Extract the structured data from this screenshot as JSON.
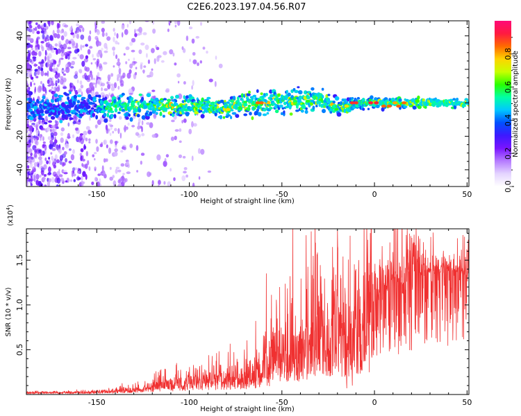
{
  "title": "C2E6.2023.197.04.56.R07",
  "chart_data": [
    {
      "type": "heatmap",
      "name": "spectrogram",
      "xlabel": "Height of straight line (km)",
      "ylabel": "Frequency (Hz)",
      "xlim": [
        -188,
        51
      ],
      "ylim": [
        -50,
        49
      ],
      "xticks": [
        -150,
        -100,
        -50,
        0,
        50
      ],
      "yticks": [
        -40,
        -20,
        0,
        20,
        40
      ],
      "colorbar": {
        "label": "Normalized spectral amplitude",
        "range": [
          0.0,
          1.0
        ],
        "ticks": [
          0.0,
          0.2,
          0.4,
          0.6,
          0.8
        ],
        "tick_labels": [
          "0.0",
          "0.2",
          "0.4",
          "0.6",
          "0.8"
        ],
        "colormap": [
          "#ffffff",
          "#e4d4ff",
          "#b57bff",
          "#7a15ff",
          "#3d19ff",
          "#0050ff",
          "#00c8ff",
          "#00ffa6",
          "#2aff00",
          "#c8ff00",
          "#ffd400",
          "#ff6a00",
          "#ff1a40",
          "#ff0a78"
        ]
      },
      "band_center": [
        [
          -188,
          -3
        ],
        [
          -170,
          -3
        ],
        [
          -150,
          -2
        ],
        [
          -120,
          -2
        ],
        [
          -100,
          -2
        ],
        [
          -80,
          -3
        ],
        [
          -70,
          -1
        ],
        [
          -60,
          0
        ],
        [
          -50,
          1
        ],
        [
          -40,
          1
        ],
        [
          -30,
          2
        ],
        [
          -20,
          -3
        ],
        [
          -10,
          -1
        ],
        [
          0,
          0
        ],
        [
          10,
          0
        ],
        [
          20,
          0
        ],
        [
          30,
          0
        ],
        [
          40,
          0
        ],
        [
          51,
          0
        ]
      ],
      "band_halfwidth": [
        [
          -188,
          7
        ],
        [
          -150,
          6
        ],
        [
          -120,
          5
        ],
        [
          -90,
          5
        ],
        [
          -75,
          6
        ],
        [
          -60,
          6
        ],
        [
          -45,
          6
        ],
        [
          -30,
          6
        ],
        [
          -20,
          4
        ],
        [
          -10,
          3
        ],
        [
          0,
          2.5
        ],
        [
          20,
          2.5
        ],
        [
          51,
          2.5
        ]
      ],
      "hot_spots": [
        {
          "x": -63,
          "y": 0,
          "level": 0.85
        },
        {
          "x": -61,
          "y": 0,
          "level": 0.85
        },
        {
          "x": -12,
          "y": 0,
          "level": 0.9
        },
        {
          "x": -10,
          "y": 0,
          "level": 0.9
        },
        {
          "x": -2,
          "y": 0,
          "level": 0.92
        },
        {
          "x": 1,
          "y": 0,
          "level": 0.92
        },
        {
          "x": 5,
          "y": -2,
          "level": 0.85
        },
        {
          "x": 8,
          "y": -2,
          "level": 0.85
        },
        {
          "x": 11,
          "y": 0,
          "level": 0.8
        },
        {
          "x": 13,
          "y": -2,
          "level": 0.85
        },
        {
          "x": 16,
          "y": 0,
          "level": 0.85
        },
        {
          "x": -79,
          "y": -4,
          "level": 0.75
        },
        {
          "x": -15,
          "y": -2,
          "level": 0.75
        },
        {
          "x": -36,
          "y": 1,
          "level": 0.6
        }
      ]
    },
    {
      "type": "line",
      "name": "snr",
      "xlabel": "Height of straight line (km)",
      "ylabel": "SNR (10 * v/v)",
      "scale_note": "(x10",
      "scale_exp": "4",
      "scale_close": ")",
      "xlim": [
        -188,
        51
      ],
      "ylim": [
        0,
        18500
      ],
      "xticks": [
        -150,
        -100,
        -50,
        0,
        50
      ],
      "yticks": [
        5000,
        10000,
        15000
      ],
      "ytick_labels": [
        "0.5",
        "1.0",
        "1.5"
      ],
      "color": "#f03030",
      "series": [
        {
          "name": "SNR",
          "envelope": [
            [
              -188,
              300
            ],
            [
              -160,
              350
            ],
            [
              -150,
              450
            ],
            [
              -140,
              600
            ],
            [
              -130,
              800
            ],
            [
              -120,
              1100
            ],
            [
              -110,
              1500
            ],
            [
              -100,
              1800
            ],
            [
              -90,
              2000
            ],
            [
              -80,
              2300
            ],
            [
              -70,
              2700
            ],
            [
              -65,
              2900
            ],
            [
              -60,
              3500
            ],
            [
              -55,
              4500
            ],
            [
              -50,
              5500
            ],
            [
              -45,
              6000
            ],
            [
              -40,
              6600
            ],
            [
              -35,
              7200
            ],
            [
              -30,
              7800
            ],
            [
              -25,
              8200
            ],
            [
              -20,
              8400
            ],
            [
              -15,
              8500
            ],
            [
              -12,
              8500
            ],
            [
              -8,
              8800
            ],
            [
              -5,
              9300
            ],
            [
              -3,
              10500
            ],
            [
              0,
              11500
            ],
            [
              5,
              12300
            ],
            [
              10,
              12800
            ],
            [
              15,
              13200
            ],
            [
              20,
              13700
            ],
            [
              25,
              14200
            ],
            [
              30,
              14600
            ],
            [
              35,
              14900
            ],
            [
              40,
              15000
            ],
            [
              45,
              15000
            ],
            [
              51,
              14700
            ]
          ],
          "peaks": [
            [
              -83,
              3300
            ],
            [
              -68,
              3100
            ],
            [
              -60,
              6600
            ],
            [
              -55,
              7000
            ],
            [
              -48,
              8100
            ],
            [
              -40,
              7600
            ],
            [
              -37,
              9400
            ],
            [
              -29,
              10300
            ],
            [
              -23,
              12800
            ],
            [
              -20,
              18300
            ],
            [
              -17,
              15400
            ],
            [
              -12,
              17000
            ],
            [
              -10,
              14000
            ],
            [
              -6,
              13300
            ],
            [
              -3,
              14700
            ],
            [
              5,
              13900
            ],
            [
              12,
              12500
            ],
            [
              23,
              14700
            ],
            [
              33,
              15500
            ]
          ],
          "dips": [
            [
              -15,
              700
            ],
            [
              -12,
              1000
            ],
            [
              -9,
              2300
            ],
            [
              -7,
              2800
            ],
            [
              13,
              4500
            ]
          ]
        }
      ]
    }
  ]
}
